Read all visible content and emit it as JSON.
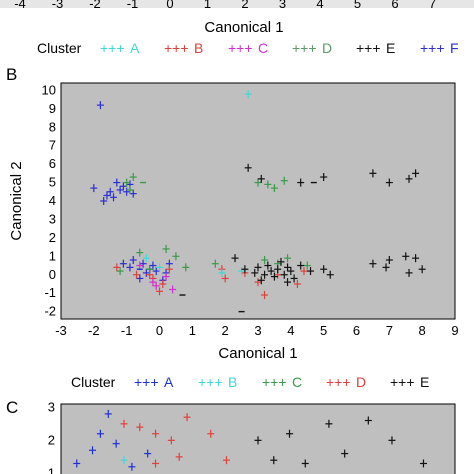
{
  "colors": {
    "A": "#1f2fd6",
    "B": "#e0403a",
    "C": "#d22fd2",
    "D": "#3a9a4a",
    "E": "#111111",
    "F": "#2c2cd8",
    "cyan": "#40d8d8",
    "plot_bg": "#bfbfbf"
  },
  "chart_data": [
    {
      "panel": "A",
      "type": "scatter",
      "partial": true,
      "xlabel": "Canonical 1",
      "x_ticks": [
        "-4",
        "-3",
        "-2",
        "-1",
        "0",
        "1",
        "2",
        "3",
        "4",
        "5",
        "6",
        "7"
      ],
      "legend": {
        "title": "Cluster",
        "placement": "below-axis",
        "entries": [
          {
            "marker": "+++",
            "name": "A",
            "color": "#40d8d8"
          },
          {
            "marker": "+++",
            "name": "B",
            "color": "#e0403a"
          },
          {
            "marker": "+++",
            "name": "C",
            "color": "#d22fd2"
          },
          {
            "marker": "+++",
            "name": "D",
            "color": "#5a9a6a"
          },
          {
            "marker": "+++",
            "name": "E",
            "color": "#111111"
          },
          {
            "marker": "+++",
            "name": "F",
            "color": "#2c2cd8"
          }
        ]
      }
    },
    {
      "panel": "B",
      "type": "scatter",
      "xlabel": "Canonical 1",
      "ylabel": "Canonical 2",
      "xlim": [
        -3,
        9
      ],
      "ylim": [
        -2.4,
        10.4
      ],
      "x_ticks": [
        "-3",
        "-2",
        "-1",
        "0",
        "1",
        "2",
        "3",
        "4",
        "5",
        "6",
        "7",
        "8",
        "9"
      ],
      "y_ticks": [
        "-2",
        "-1",
        "0",
        "1",
        "2",
        "3",
        "4",
        "5",
        "6",
        "7",
        "8",
        "9",
        "10"
      ],
      "grid": false,
      "series": [
        {
          "name": "F",
          "color": "#2c2cd8",
          "points": [
            [
              -1.8,
              9.2
            ],
            [
              -2.0,
              4.7
            ],
            [
              -1.6,
              4.3
            ],
            [
              -1.5,
              4.5
            ],
            [
              -1.3,
              5.0
            ],
            [
              -1.2,
              4.6
            ],
            [
              -1.1,
              4.8
            ],
            [
              -1.0,
              4.5
            ],
            [
              -0.9,
              4.9
            ],
            [
              -1.4,
              4.2
            ],
            [
              -1.7,
              4.0
            ],
            [
              -0.8,
              4.4
            ],
            [
              -1.1,
              0.6
            ],
            [
              -0.9,
              0.4
            ],
            [
              -0.5,
              0.6
            ],
            [
              -0.3,
              0.3
            ],
            [
              -0.1,
              0.2
            ],
            [
              0.2,
              0.1
            ],
            [
              -0.6,
              -0.2
            ],
            [
              0.3,
              0.6
            ],
            [
              -0.2,
              0.5
            ],
            [
              0.1,
              -0.3
            ],
            [
              -0.4,
              0.1
            ],
            [
              -0.8,
              0.8
            ]
          ]
        },
        {
          "name": "D",
          "color": "#3a9a4a",
          "points": [
            [
              -0.8,
              5.3
            ],
            [
              -1.0,
              5.0
            ],
            [
              -0.9,
              4.6
            ],
            [
              -0.6,
              1.2
            ],
            [
              0.5,
              1.0
            ],
            [
              0.2,
              1.4
            ],
            [
              -0.3,
              0.3
            ],
            [
              -1.2,
              0.2
            ],
            [
              0.8,
              0.4
            ],
            [
              1.7,
              0.6
            ],
            [
              3.0,
              5.0
            ],
            [
              3.3,
              4.9
            ],
            [
              3.8,
              5.1
            ],
            [
              3.5,
              4.7
            ],
            [
              3.2,
              0.8
            ],
            [
              3.6,
              0.6
            ],
            [
              3.9,
              0.9
            ],
            [
              4.5,
              0.5
            ]
          ]
        },
        {
          "name": "B",
          "color": "#e0403a",
          "points": [
            [
              -1.3,
              0.4
            ],
            [
              -0.7,
              0.0
            ],
            [
              -0.2,
              -0.2
            ],
            [
              0.1,
              -0.5
            ],
            [
              0.3,
              0.3
            ],
            [
              0.0,
              -0.9
            ],
            [
              -0.3,
              0.0
            ],
            [
              2.6,
              0.1
            ],
            [
              1.9,
              0.3
            ],
            [
              2.0,
              -0.2
            ],
            [
              3.0,
              -0.4
            ],
            [
              3.2,
              -1.1
            ],
            [
              3.6,
              0.0
            ],
            [
              4.2,
              -0.5
            ],
            [
              4.4,
              0.2
            ]
          ]
        },
        {
          "name": "C",
          "color": "#d22fd2",
          "points": [
            [
              -0.6,
              0.5
            ],
            [
              -0.2,
              -0.4
            ],
            [
              0.2,
              -0.1
            ],
            [
              -0.1,
              -0.6
            ],
            [
              0.4,
              -0.8
            ]
          ]
        },
        {
          "name": "cyan",
          "color": "#40d8d8",
          "points": [
            [
              2.7,
              9.8
            ],
            [
              1.9,
              0.1
            ],
            [
              2.5,
              0.2
            ],
            [
              -0.4,
              0.9
            ],
            [
              0.0,
              0.4
            ]
          ]
        },
        {
          "name": "E",
          "color": "#111111",
          "points": [
            [
              2.7,
              5.8
            ],
            [
              3.1,
              5.2
            ],
            [
              4.3,
              5.0
            ],
            [
              5.0,
              5.3
            ],
            [
              6.5,
              5.5
            ],
            [
              7.0,
              5.0
            ],
            [
              7.6,
              5.2
            ],
            [
              7.8,
              5.5
            ],
            [
              2.3,
              0.9
            ],
            [
              2.6,
              0.3
            ],
            [
              2.9,
              0.1
            ],
            [
              3.0,
              0.4
            ],
            [
              3.2,
              0.0
            ],
            [
              3.3,
              0.5
            ],
            [
              3.4,
              0.2
            ],
            [
              3.5,
              -0.1
            ],
            [
              3.6,
              0.3
            ],
            [
              3.7,
              0.7
            ],
            [
              3.8,
              0.0
            ],
            [
              3.9,
              0.4
            ],
            [
              4.0,
              0.2
            ],
            [
              4.1,
              -0.2
            ],
            [
              4.3,
              0.5
            ],
            [
              5.0,
              0.3
            ],
            [
              5.2,
              0.0
            ],
            [
              6.5,
              0.6
            ],
            [
              7.0,
              0.8
            ],
            [
              7.5,
              1.0
            ],
            [
              7.8,
              0.9
            ],
            [
              8.0,
              0.3
            ],
            [
              7.6,
              0.1
            ],
            [
              6.9,
              0.4
            ],
            [
              3.1,
              -0.3
            ],
            [
              4.6,
              0.2
            ],
            [
              3.9,
              -0.4
            ]
          ]
        }
      ],
      "dash_marks": [
        {
          "x": 4.7,
          "y": 5.0,
          "color": "#111111"
        },
        {
          "x": 2.5,
          "y": -2.0,
          "color": "#111111"
        },
        {
          "x": -0.5,
          "y": 5.0,
          "color": "#3a9a4a"
        },
        {
          "x": 0.7,
          "y": -1.1,
          "color": "#111111"
        },
        {
          "x": -0.6,
          "y": 0.3,
          "color": "#1f2fd6"
        }
      ]
    },
    {
      "panel": "C",
      "type": "scatter",
      "partial": true,
      "ylim": [
        0.8,
        3.1
      ],
      "y_ticks": [
        "1",
        "2",
        "3"
      ],
      "legend": {
        "title": "Cluster",
        "placement": "above-plot",
        "entries": [
          {
            "marker": "+++",
            "name": "A",
            "color": "#1f2fd6"
          },
          {
            "marker": "+++",
            "name": "B",
            "color": "#40d8d8"
          },
          {
            "marker": "+++",
            "name": "C",
            "color": "#3a9a4a"
          },
          {
            "marker": "+++",
            "name": "D",
            "color": "#e0403a"
          },
          {
            "marker": "+++",
            "name": "E",
            "color": "#111111"
          }
        ]
      },
      "series": [
        {
          "name": "A",
          "color": "#1f2fd6",
          "points": [
            [
              0.6,
              2.8
            ],
            [
              0.5,
              2.2
            ],
            [
              0.7,
              1.9
            ],
            [
              0.4,
              1.7
            ],
            [
              0.2,
              1.3
            ],
            [
              0.9,
              1.2
            ],
            [
              1.1,
              1.6
            ]
          ]
        },
        {
          "name": "D",
          "color": "#e0403a",
          "points": [
            [
              1.0,
              2.4
            ],
            [
              1.2,
              2.2
            ],
            [
              1.4,
              2.0
            ],
            [
              1.6,
              2.7
            ],
            [
              1.9,
              2.2
            ],
            [
              2.1,
              1.4
            ],
            [
              1.5,
              1.5
            ],
            [
              0.8,
              2.5
            ],
            [
              1.2,
              1.3
            ]
          ]
        },
        {
          "name": "B",
          "color": "#40d8d8",
          "points": [
            [
              1.3,
              1.1
            ],
            [
              0.8,
              1.4
            ]
          ]
        },
        {
          "name": "E",
          "color": "#111111",
          "points": [
            [
              2.5,
              2.0
            ],
            [
              2.9,
              2.2
            ],
            [
              3.4,
              2.5
            ],
            [
              3.9,
              2.6
            ],
            [
              3.6,
              1.6
            ],
            [
              3.1,
              1.3
            ],
            [
              2.7,
              1.4
            ],
            [
              4.2,
              2.0
            ],
            [
              4.6,
              1.3
            ]
          ]
        }
      ]
    }
  ],
  "panels": {
    "B": {
      "label": "B"
    },
    "C": {
      "label": "C"
    }
  }
}
